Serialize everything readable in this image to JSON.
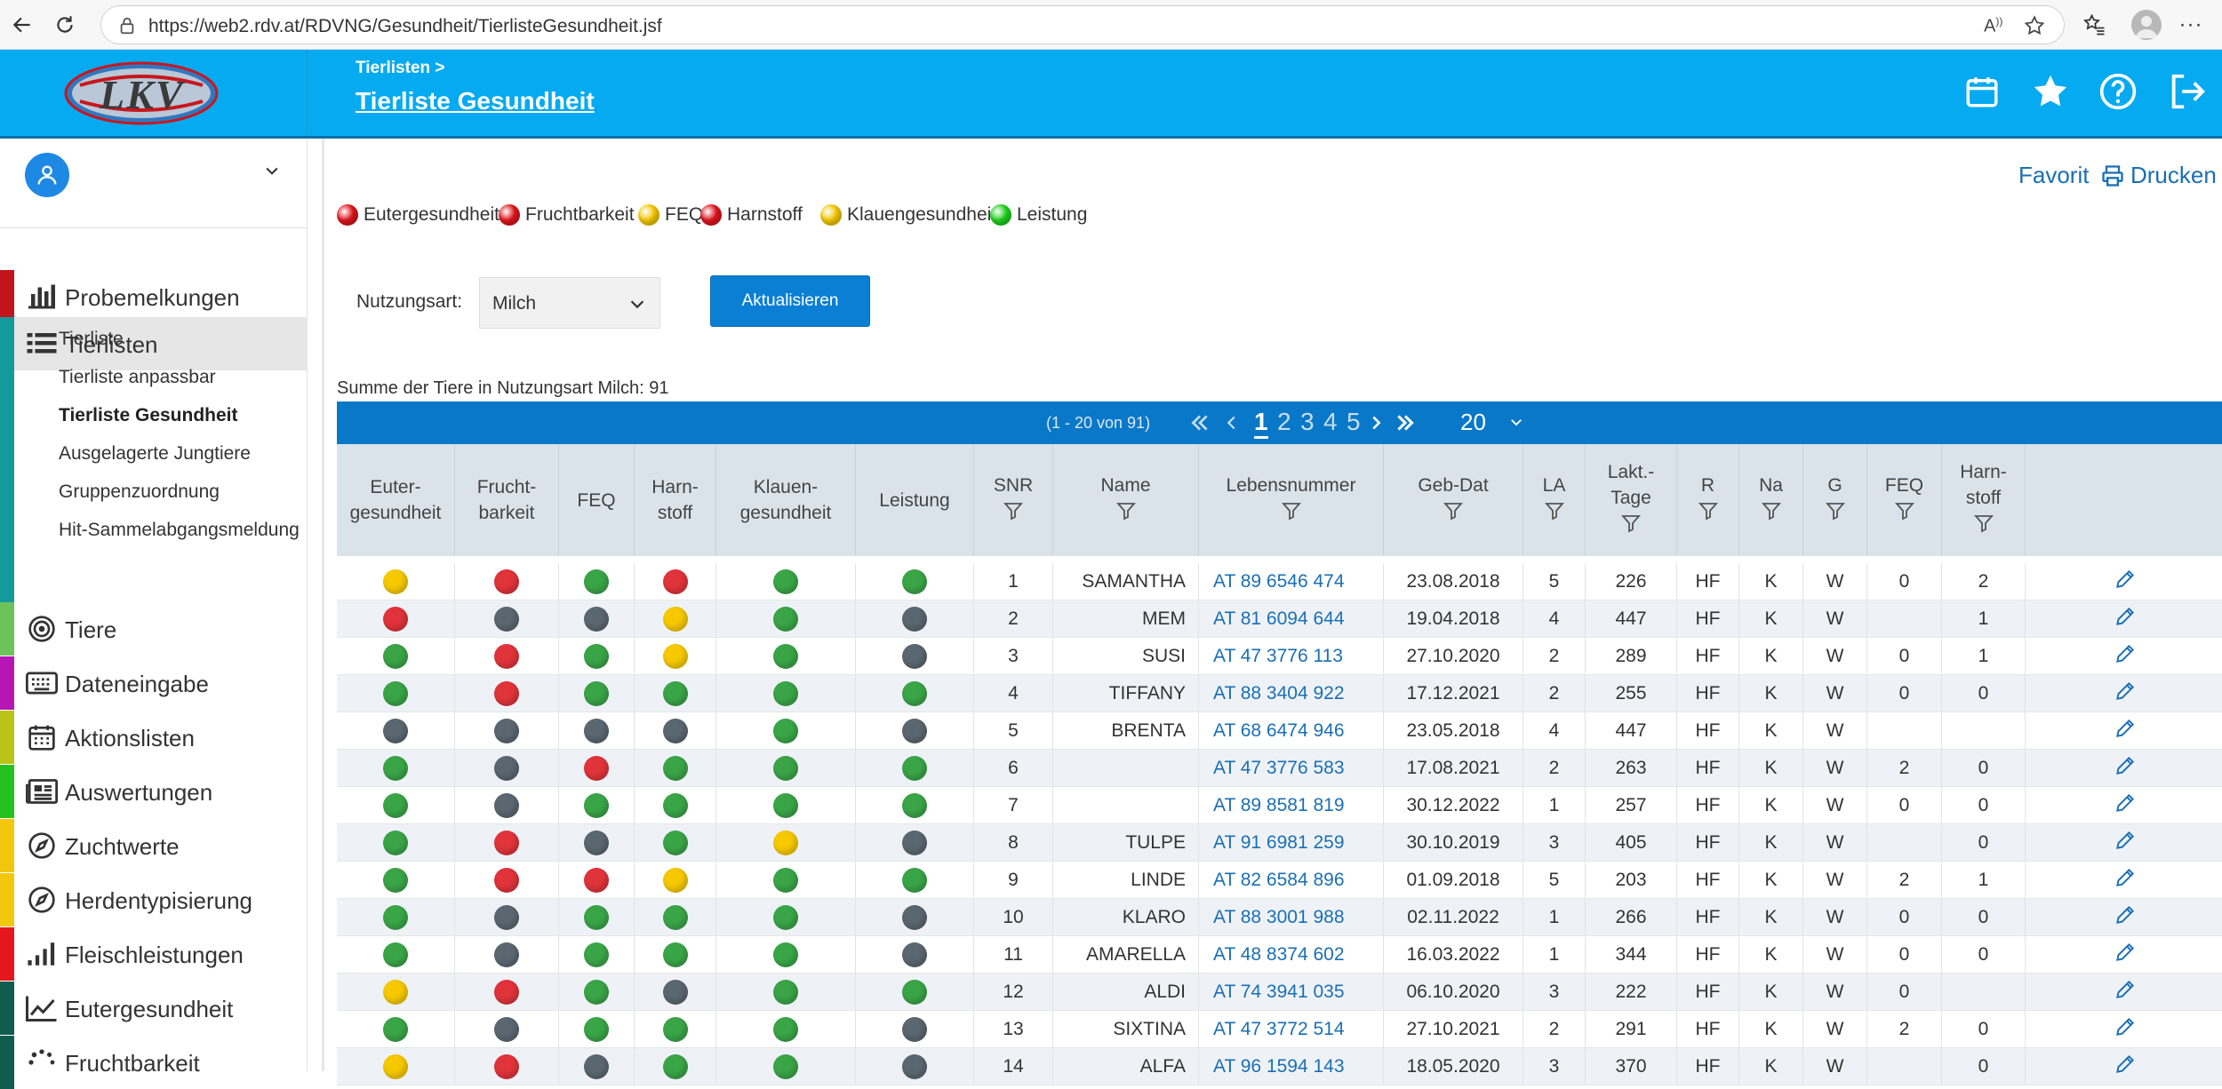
{
  "browser": {
    "url": "https://web2.rdv.at/RDVNG/Gesundheit/TierlisteGesundheit.jsf"
  },
  "header": {
    "logo_text": "LKV",
    "breadcrumb": "Tierlisten >",
    "title": "Tierliste Gesundheit"
  },
  "sidebar": {
    "items": [
      {
        "label": "Probemelkungen",
        "color": "#c4141b",
        "icon": "bar-chart-icon"
      },
      {
        "label": "Tierlisten",
        "color": "#159a9c",
        "icon": "list-icon",
        "active": true
      },
      {
        "label": "Tiere",
        "color": "#6ec25a",
        "icon": "target-icon"
      },
      {
        "label": "Dateneingabe",
        "color": "#b617b4",
        "icon": "keyboard-icon"
      },
      {
        "label": "Aktionslisten",
        "color": "#b8c417",
        "icon": "calendar-icon"
      },
      {
        "label": "Auswertungen",
        "color": "#25c11f",
        "icon": "newspaper-icon"
      },
      {
        "label": "Zuchtwerte",
        "color": "#f3c70d",
        "icon": "compass-icon"
      },
      {
        "label": "Herdentypisierung",
        "color": "#f3c70d",
        "icon": "compass-icon"
      },
      {
        "label": "Fleischleistungen",
        "color": "#e5171d",
        "icon": "signal-icon"
      },
      {
        "label": "Eutergesundheit",
        "color": "#115c4e",
        "icon": "line-chart-icon"
      },
      {
        "label": "Fruchtbarkeit",
        "color": "#115c4e",
        "icon": "spinner-icon"
      }
    ],
    "subitems": [
      {
        "label": "Tierliste",
        "active": false
      },
      {
        "label": "Tierliste anpassbar",
        "active": false
      },
      {
        "label": "Tierliste Gesundheit",
        "active": true
      },
      {
        "label": "Ausgelagerte Jungtiere",
        "active": false
      },
      {
        "label": "Gruppenzuordnung",
        "active": false
      },
      {
        "label": "Hit-Sammelabgangsmeldung",
        "active": false
      }
    ]
  },
  "legend": [
    {
      "label": "Eutergesundheit",
      "color": "#e0141b"
    },
    {
      "label": "Fruchtbarkeit",
      "color": "#e0141b"
    },
    {
      "label": "FEQ",
      "color": "#f5c800"
    },
    {
      "label": "Harnstoff",
      "color": "#e0141b"
    },
    {
      "label": "Klauengesundheit",
      "color": "#f5c800"
    },
    {
      "label": "Leistung",
      "color": "#1ed21e"
    }
  ],
  "actions": {
    "favorit": "Favorit",
    "drucken": "Drucken"
  },
  "filter": {
    "label": "Nutzungsart:",
    "value": "Milch",
    "button": "Aktualisieren"
  },
  "summary": "Summe der Tiere in Nutzungsart Milch: 91",
  "pager": {
    "info": "(1 - 20 von 91)",
    "pages": [
      "1",
      "2",
      "3",
      "4",
      "5"
    ],
    "current": "1",
    "page_size": "20"
  },
  "columns": {
    "euter": "Euter-\ngesundheit",
    "frucht": "Frucht-\nbarkeit",
    "feq": "FEQ",
    "harn": "Harn-\nstoff",
    "klauen": "Klauen-\ngesundheit",
    "leistung": "Leistung",
    "snr": "SNR",
    "name": "Name",
    "lnr": "Lebensnummer",
    "geb": "Geb-Dat",
    "la": "LA",
    "lakt": "Lakt.-\nTage",
    "r": "R",
    "na": "Na",
    "g": "G",
    "feq2": "FEQ",
    "harn2": "Harn-\nstoff"
  },
  "status_colors": {
    "y": "#f5c800",
    "r": "#e0343a",
    "g": "#3aa547",
    "d": "#5b6770"
  },
  "rows": [
    {
      "s": [
        "y",
        "r",
        "g",
        "r",
        "g",
        "g"
      ],
      "snr": "1",
      "name": "SAMANTHA",
      "lnr": "AT 89 6546 474",
      "geb": "23.08.2018",
      "la": "5",
      "lakt": "226",
      "r": "HF",
      "na": "K",
      "g": "W",
      "feq": "0",
      "harn": "2"
    },
    {
      "s": [
        "r",
        "d",
        "d",
        "y",
        "g",
        "d"
      ],
      "snr": "2",
      "name": "MEM",
      "lnr": "AT 81 6094 644",
      "geb": "19.04.2018",
      "la": "4",
      "lakt": "447",
      "r": "HF",
      "na": "K",
      "g": "W",
      "feq": "",
      "harn": "1"
    },
    {
      "s": [
        "g",
        "r",
        "g",
        "y",
        "g",
        "d"
      ],
      "snr": "3",
      "name": "SUSI",
      "lnr": "AT 47 3776 113",
      "geb": "27.10.2020",
      "la": "2",
      "lakt": "289",
      "r": "HF",
      "na": "K",
      "g": "W",
      "feq": "0",
      "harn": "1"
    },
    {
      "s": [
        "g",
        "r",
        "g",
        "g",
        "g",
        "g"
      ],
      "snr": "4",
      "name": "TIFFANY",
      "lnr": "AT 88 3404 922",
      "geb": "17.12.2021",
      "la": "2",
      "lakt": "255",
      "r": "HF",
      "na": "K",
      "g": "W",
      "feq": "0",
      "harn": "0"
    },
    {
      "s": [
        "d",
        "d",
        "d",
        "d",
        "g",
        "d"
      ],
      "snr": "5",
      "name": "BRENTA",
      "lnr": "AT 68 6474 946",
      "geb": "23.05.2018",
      "la": "4",
      "lakt": "447",
      "r": "HF",
      "na": "K",
      "g": "W",
      "feq": "",
      "harn": ""
    },
    {
      "s": [
        "g",
        "d",
        "r",
        "g",
        "g",
        "g"
      ],
      "snr": "6",
      "name": "",
      "lnr": "AT 47 3776 583",
      "geb": "17.08.2021",
      "la": "2",
      "lakt": "263",
      "r": "HF",
      "na": "K",
      "g": "W",
      "feq": "2",
      "harn": "0"
    },
    {
      "s": [
        "g",
        "d",
        "g",
        "g",
        "g",
        "g"
      ],
      "snr": "7",
      "name": "",
      "lnr": "AT 89 8581 819",
      "geb": "30.12.2022",
      "la": "1",
      "lakt": "257",
      "r": "HF",
      "na": "K",
      "g": "W",
      "feq": "0",
      "harn": "0"
    },
    {
      "s": [
        "g",
        "r",
        "d",
        "g",
        "y",
        "d"
      ],
      "snr": "8",
      "name": "TULPE",
      "lnr": "AT 91 6981 259",
      "geb": "30.10.2019",
      "la": "3",
      "lakt": "405",
      "r": "HF",
      "na": "K",
      "g": "W",
      "feq": "",
      "harn": "0"
    },
    {
      "s": [
        "g",
        "r",
        "r",
        "y",
        "g",
        "g"
      ],
      "snr": "9",
      "name": "LINDE",
      "lnr": "AT 82 6584 896",
      "geb": "01.09.2018",
      "la": "5",
      "lakt": "203",
      "r": "HF",
      "na": "K",
      "g": "W",
      "feq": "2",
      "harn": "1"
    },
    {
      "s": [
        "g",
        "d",
        "g",
        "g",
        "g",
        "d"
      ],
      "snr": "10",
      "name": "KLARO",
      "lnr": "AT 88 3001 988",
      "geb": "02.11.2022",
      "la": "1",
      "lakt": "266",
      "r": "HF",
      "na": "K",
      "g": "W",
      "feq": "0",
      "harn": "0"
    },
    {
      "s": [
        "g",
        "d",
        "g",
        "g",
        "g",
        "d"
      ],
      "snr": "11",
      "name": "AMARELLA",
      "lnr": "AT 48 8374 602",
      "geb": "16.03.2022",
      "la": "1",
      "lakt": "344",
      "r": "HF",
      "na": "K",
      "g": "W",
      "feq": "0",
      "harn": "0"
    },
    {
      "s": [
        "y",
        "r",
        "g",
        "d",
        "g",
        "g"
      ],
      "snr": "12",
      "name": "ALDI",
      "lnr": "AT 74 3941 035",
      "geb": "06.10.2020",
      "la": "3",
      "lakt": "222",
      "r": "HF",
      "na": "K",
      "g": "W",
      "feq": "0",
      "harn": ""
    },
    {
      "s": [
        "g",
        "d",
        "g",
        "g",
        "g",
        "d"
      ],
      "snr": "13",
      "name": "SIXTINA",
      "lnr": "AT 47 3772 514",
      "geb": "27.10.2021",
      "la": "2",
      "lakt": "291",
      "r": "HF",
      "na": "K",
      "g": "W",
      "feq": "2",
      "harn": "0"
    },
    {
      "s": [
        "y",
        "r",
        "d",
        "g",
        "g",
        "d"
      ],
      "snr": "14",
      "name": "ALFA",
      "lnr": "AT 96 1594 143",
      "geb": "18.05.2020",
      "la": "3",
      "lakt": "370",
      "r": "HF",
      "na": "K",
      "g": "W",
      "feq": "",
      "harn": "0"
    }
  ]
}
